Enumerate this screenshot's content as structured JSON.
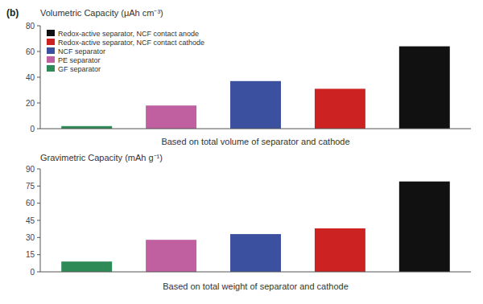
{
  "chart_data": [
    {
      "type": "bar",
      "title": "(b)",
      "ylabel": "Volumetric Capacity (μAh cm⁻³)",
      "xlabel": "Based on total volume of separator and cathode",
      "categories": [
        null,
        null,
        null,
        null,
        null
      ],
      "series": [
        {
          "name": "Redox-active separator, NCF contact anode",
          "color": "#111111",
          "values": [
            null,
            null,
            null,
            null,
            64
          ]
        },
        {
          "name": "Redox-active separator, NCF contact cathode",
          "color": "#cc2222",
          "values": [
            null,
            null,
            null,
            31,
            null
          ]
        },
        {
          "name": "NCF separator",
          "color": "#3c50a0",
          "values": [
            null,
            null,
            37,
            null,
            null
          ]
        },
        {
          "name": "PE separator",
          "color": "#c060a0",
          "values": [
            null,
            18,
            null,
            null,
            null
          ]
        },
        {
          "name": "GF separator",
          "color": "#2e8b57",
          "values": [
            2,
            null,
            null,
            null,
            null
          ]
        }
      ],
      "ylim": [
        0,
        80
      ],
      "yticks": [
        0,
        20,
        40,
        60,
        80
      ],
      "grid": false,
      "legend": "upper left",
      "tick_labels": "y"
    },
    {
      "type": "bar",
      "ylabel": "Gravimetric Capacity (mAh g⁻¹)",
      "xlabel": "Based on total weight of separator and cathode",
      "categories": [
        null,
        null,
        null,
        null,
        null
      ],
      "values": [
        9,
        28,
        33,
        38,
        79
      ],
      "colors": [
        "#2e8b57",
        "#c060a0",
        "#3c50a0",
        "#cc2222",
        "#111111"
      ],
      "ylim": [
        0,
        90
      ],
      "yticks": [
        0,
        15,
        30,
        45,
        60,
        75,
        90
      ],
      "grid": false,
      "tick_labels": "y"
    }
  ]
}
